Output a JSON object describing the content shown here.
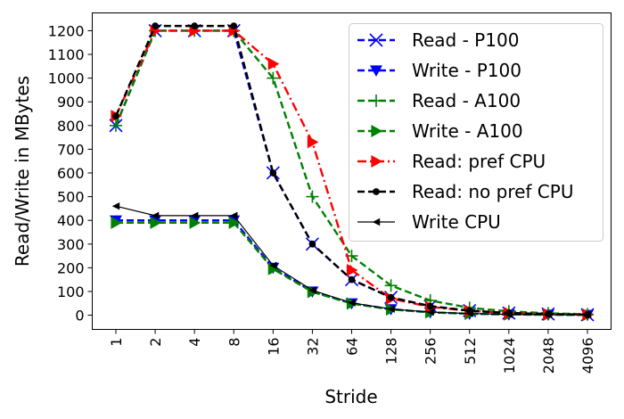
{
  "chart_data": {
    "type": "line",
    "title": "",
    "xlabel": "Stride",
    "ylabel": "Read/Write in MBytes",
    "categories": [
      "1",
      "2",
      "4",
      "8",
      "16",
      "32",
      "64",
      "128",
      "256",
      "512",
      "1024",
      "2048",
      "4096"
    ],
    "ylim": [
      -60,
      1275
    ],
    "yticks": [
      0,
      100,
      200,
      300,
      400,
      500,
      600,
      700,
      800,
      900,
      1000,
      1100,
      1200
    ],
    "grid": false,
    "legend_position": "top-right",
    "series": [
      {
        "name": "Read - P100",
        "color": "#0000ff",
        "linestyle": "dashed",
        "marker": "x",
        "values": [
          800,
          1200,
          1200,
          1200,
          600,
          300,
          150,
          75,
          38,
          19,
          9,
          5,
          2
        ]
      },
      {
        "name": "Write - P100",
        "color": "#0000ff",
        "linestyle": "dashed",
        "marker": "triangle-down",
        "values": [
          400,
          400,
          400,
          400,
          200,
          100,
          50,
          25,
          12,
          6,
          3,
          2,
          1
        ]
      },
      {
        "name": "Read - A100",
        "color": "#008000",
        "linestyle": "dashed",
        "marker": "plus",
        "values": [
          800,
          1200,
          1200,
          1200,
          1000,
          500,
          250,
          125,
          62,
          31,
          16,
          8,
          4
        ]
      },
      {
        "name": "Write - A100",
        "color": "#008000",
        "linestyle": "dashed",
        "marker": "triangle-right",
        "values": [
          390,
          390,
          390,
          390,
          195,
          98,
          49,
          24,
          12,
          6,
          3,
          2,
          1
        ]
      },
      {
        "name": "Read: pref CPU",
        "color": "#ff0000",
        "linestyle": "dashdot",
        "marker": "triangle-right",
        "values": [
          840,
          1200,
          1200,
          1200,
          1060,
          730,
          190,
          70,
          35,
          18,
          9,
          4,
          2
        ]
      },
      {
        "name": "Read: no pref CPU",
        "color": "#000000",
        "linestyle": "dashed",
        "marker": "circle",
        "values": [
          840,
          1220,
          1220,
          1220,
          600,
          300,
          150,
          75,
          38,
          19,
          9,
          5,
          2
        ]
      },
      {
        "name": "Write CPU",
        "color": "#000000",
        "linestyle": "solid",
        "marker": "triangle-left",
        "values": [
          460,
          420,
          420,
          420,
          210,
          105,
          52,
          26,
          13,
          7,
          3,
          2,
          1
        ]
      }
    ]
  }
}
